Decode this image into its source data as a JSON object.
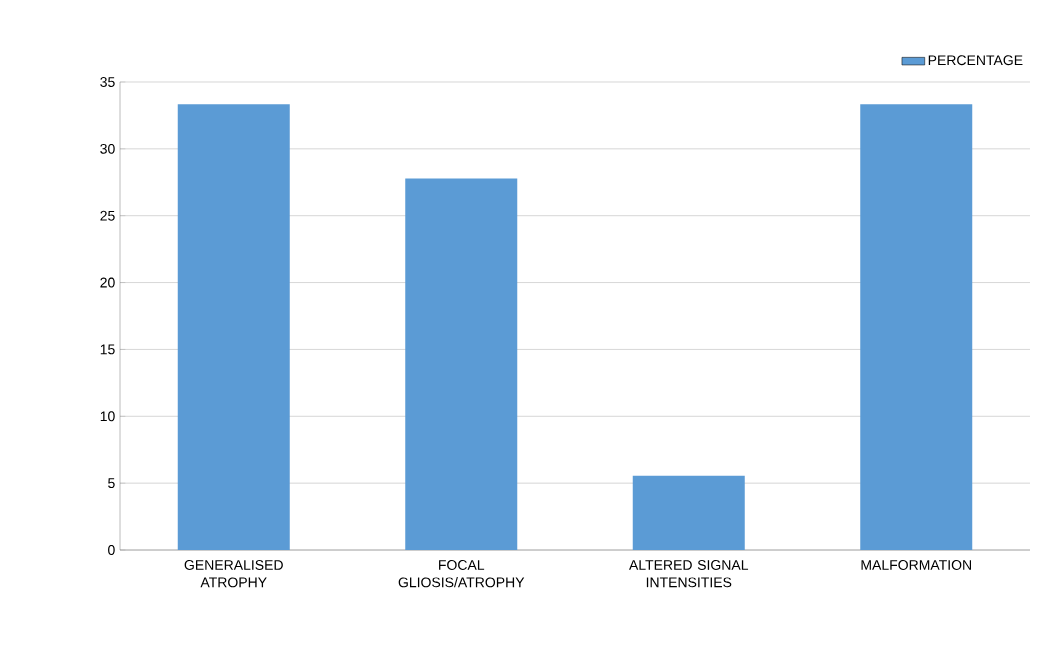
{
  "chart_data": {
    "type": "bar",
    "categories": [
      "GENERALISED ATROPHY",
      "FOCAL GLIOSIS/ATROPHY",
      "ALTERED SIGNAL INTENSITIES",
      "MALFORMATION"
    ],
    "series": [
      {
        "name": "PERCENTAGE",
        "color": "#5b9bd5",
        "values": [
          33.33,
          27.78,
          5.56,
          33.33
        ]
      }
    ],
    "ylim": [
      0,
      35
    ],
    "yticks": [
      0,
      5,
      10,
      15,
      20,
      25,
      30,
      35
    ],
    "grid": "y",
    "legend": "top right"
  }
}
